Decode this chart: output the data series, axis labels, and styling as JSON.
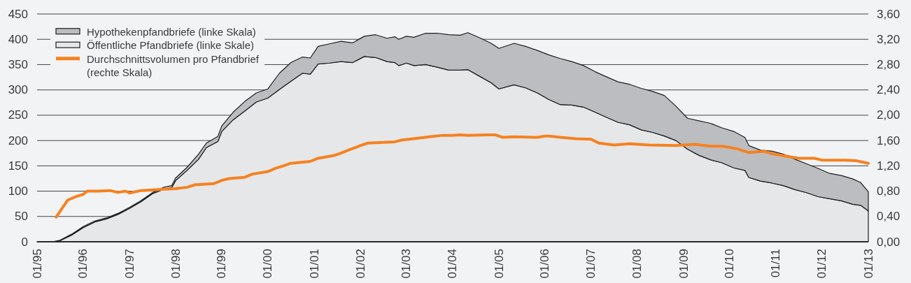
{
  "chart_data": {
    "type": "area",
    "stacked": true,
    "x": [
      "1995-01",
      "1995-05",
      "1995-07",
      "1995-10",
      "1996-01",
      "1996-04",
      "1996-07",
      "1996-10",
      "1997-01",
      "1997-04",
      "1997-07",
      "1997-10",
      "1997-12",
      "1998-01",
      "1998-04",
      "1998-07",
      "1998-09",
      "1998-12",
      "1999-01",
      "1999-04",
      "1999-07",
      "1999-10",
      "2000-01",
      "2000-04",
      "2000-07",
      "2000-10",
      "2000-12",
      "2001-02",
      "2001-05",
      "2001-08",
      "2001-11",
      "2002-02",
      "2002-05",
      "2002-08",
      "2002-10",
      "2002-11",
      "2003-01",
      "2003-03",
      "2003-06",
      "2003-09",
      "2003-12",
      "2004-03",
      "2004-05",
      "2004-08",
      "2004-11",
      "2005-01",
      "2005-05",
      "2005-08",
      "2005-11",
      "2006-02",
      "2006-05",
      "2006-08",
      "2006-11",
      "2007-02",
      "2007-05",
      "2007-08",
      "2007-11",
      "2008-02",
      "2008-05",
      "2008-08",
      "2008-11",
      "2009-02",
      "2009-05",
      "2009-08",
      "2009-11",
      "2010-02",
      "2010-05",
      "2010-06",
      "2010-09",
      "2010-12",
      "2011-03",
      "2011-06",
      "2011-09",
      "2011-12",
      "2012-03",
      "2012-06",
      "2012-09",
      "2012-11",
      "2013-01"
    ],
    "series": [
      {
        "name": "Öffentliche Pfandbriefe (linke Skale)",
        "color": "#e6e7e9",
        "values": [
          0,
          0,
          2,
          13,
          28,
          39,
          45,
          54,
          66,
          79,
          95,
          104,
          107,
          121,
          141,
          163,
          186,
          198,
          218,
          241,
          258,
          276,
          284,
          301,
          317,
          333,
          331,
          351,
          353,
          356,
          354,
          366,
          364,
          356,
          354,
          348,
          353,
          348,
          350,
          345,
          339,
          339,
          340,
          327,
          314,
          302,
          310,
          304,
          294,
          281,
          271,
          270,
          266,
          256,
          246,
          236,
          231,
          221,
          216,
          209,
          200,
          183,
          171,
          162,
          156,
          146,
          141,
          127,
          120,
          116,
          111,
          103,
          97,
          89,
          85,
          81,
          74,
          72,
          61
        ]
      },
      {
        "name": "Hypothekenpfandbriefe (linke Skala)",
        "color": "#bcbdc0",
        "values": [
          0,
          0,
          1,
          2,
          2,
          2,
          2,
          2,
          2,
          2,
          2,
          4,
          4,
          5,
          6,
          10,
          9,
          10,
          11,
          15,
          19,
          18,
          18,
          32,
          37,
          32,
          32,
          35,
          38,
          40,
          39,
          40,
          45,
          46,
          51,
          52,
          53,
          56,
          62,
          67,
          70,
          69,
          73,
          76,
          78,
          80,
          82,
          82,
          84,
          88,
          91,
          86,
          82,
          80,
          80,
          80,
          80,
          82,
          81,
          80,
          68,
          61,
          68,
          72,
          69,
          72,
          65,
          63,
          61,
          63,
          62,
          60,
          57,
          56,
          50,
          50,
          50,
          45,
          38
        ]
      },
      {
        "name": "Durchschnittsvolumen pro Pfandbrief (rechte Skala)",
        "type": "line",
        "axis": "y2",
        "color": "#f58220",
        "x": [
          "1995-06",
          "1995-09",
          "1995-11",
          "1996-01",
          "1996-02",
          "1996-05",
          "1996-08",
          "1996-10",
          "1996-12",
          "1997-01",
          "1997-04",
          "1997-07",
          "1997-10",
          "1998-01",
          "1998-04",
          "1998-06",
          "1998-11",
          "1999-01",
          "1999-03",
          "1999-07",
          "1999-09",
          "2000-01",
          "2000-03",
          "2000-05",
          "2000-07",
          "2000-12",
          "2001-02",
          "2001-06",
          "2001-08",
          "2001-10",
          "2002-01",
          "2002-03",
          "2002-07",
          "2002-10",
          "2002-12",
          "2003-03",
          "2003-07",
          "2003-10",
          "2004-01",
          "2004-03",
          "2004-05",
          "2004-10",
          "2004-12",
          "2005-02",
          "2005-05",
          "2005-11",
          "2006-01",
          "2006-02",
          "2006-05",
          "2006-09",
          "2007-01",
          "2007-03",
          "2007-07",
          "2007-11",
          "2008-04",
          "2008-11",
          "2009-04",
          "2009-08",
          "2009-11",
          "2010-03",
          "2010-06",
          "2010-10",
          "2010-12",
          "2011-03",
          "2011-07",
          "2011-11",
          "2012-01",
          "2012-07",
          "2012-10",
          "2013-01"
        ],
        "values": [
          0.39,
          0.66,
          0.71,
          0.75,
          0.8,
          0.8,
          0.81,
          0.78,
          0.8,
          0.77,
          0.81,
          0.82,
          0.83,
          0.84,
          0.86,
          0.9,
          0.92,
          0.97,
          1.0,
          1.02,
          1.07,
          1.11,
          1.16,
          1.2,
          1.24,
          1.27,
          1.32,
          1.36,
          1.4,
          1.45,
          1.52,
          1.56,
          1.57,
          1.58,
          1.61,
          1.63,
          1.66,
          1.68,
          1.68,
          1.69,
          1.68,
          1.69,
          1.69,
          1.65,
          1.66,
          1.65,
          1.67,
          1.67,
          1.65,
          1.63,
          1.62,
          1.56,
          1.53,
          1.55,
          1.53,
          1.52,
          1.54,
          1.51,
          1.51,
          1.47,
          1.41,
          1.43,
          1.39,
          1.36,
          1.32,
          1.32,
          1.29,
          1.29,
          1.28,
          1.24
        ]
      }
    ],
    "xlim": [
      "1995-01",
      "2013-01"
    ],
    "xticks": [
      {
        "value": "1995-01",
        "label": "01/95"
      },
      {
        "value": "1996-01",
        "label": "01/96"
      },
      {
        "value": "1997-01",
        "label": "01/97"
      },
      {
        "value": "1998-01",
        "label": "01/98"
      },
      {
        "value": "1999-01",
        "label": "01/99"
      },
      {
        "value": "2000-01",
        "label": "01/00"
      },
      {
        "value": "2001-01",
        "label": "01/01"
      },
      {
        "value": "2002-01",
        "label": "01/02"
      },
      {
        "value": "2003-01",
        "label": "01/03"
      },
      {
        "value": "2004-01",
        "label": "01/04"
      },
      {
        "value": "2005-01",
        "label": "01/05"
      },
      {
        "value": "2006-01",
        "label": "01/06"
      },
      {
        "value": "2007-01",
        "label": "01/07"
      },
      {
        "value": "2008-01",
        "label": "01/08"
      },
      {
        "value": "2009-01",
        "label": "01/09"
      },
      {
        "value": "2010-01",
        "label": "01/10"
      },
      {
        "value": "2011-01",
        "label": "01/11"
      },
      {
        "value": "2012-01",
        "label": "01/12"
      },
      {
        "value": "2013-01",
        "label": "01/13"
      }
    ],
    "ylim": [
      0,
      450
    ],
    "yticks": [
      0,
      50,
      100,
      150,
      200,
      250,
      300,
      350,
      400,
      450
    ],
    "y2lim": [
      0,
      3.6
    ],
    "y2ticks": [
      {
        "value": 0,
        "label": "0,00"
      },
      {
        "value": 0.4,
        "label": "0,40"
      },
      {
        "value": 0.8,
        "label": "0,80"
      },
      {
        "value": 1.2,
        "label": "1,20"
      },
      {
        "value": 1.6,
        "label": "1,60"
      },
      {
        "value": 2.0,
        "label": "2,00"
      },
      {
        "value": 2.4,
        "label": "2,40"
      },
      {
        "value": 2.8,
        "label": "2,80"
      },
      {
        "value": 3.2,
        "label": "3,20"
      },
      {
        "value": 3.6,
        "label": "3,60"
      }
    ],
    "grid": "y",
    "legend": "top left"
  }
}
